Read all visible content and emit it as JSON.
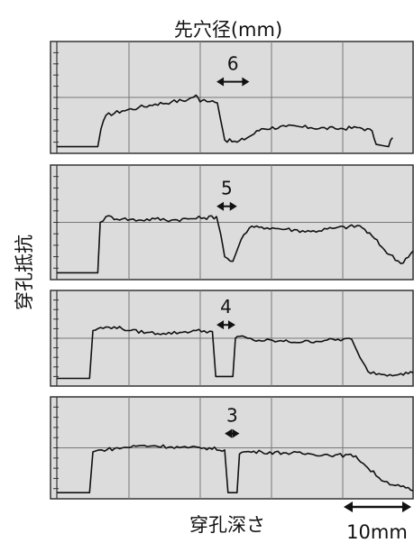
{
  "chart_data": {
    "type": "line",
    "title": "先穴径(mm)",
    "ylabel": "穿孔抵抗",
    "xlabel": "穿孔深さ",
    "scale_bar": {
      "label": "10mm",
      "length_mm": 10
    },
    "grid": true,
    "background": "#dcdcdc",
    "line_color": "#111111",
    "x_unit": "mm",
    "x_range_mm": [
      0,
      43.5
    ],
    "y_range": [
      0,
      1
    ],
    "panels": [
      {
        "hole_label": "6",
        "hole_mm": 6,
        "gap_mm": [
          19.5,
          23.5
        ],
        "x": [
          0,
          5,
          5.4,
          6,
          8,
          10,
          12,
          14,
          16,
          17,
          17.5,
          18,
          19,
          19.6,
          20,
          20.5,
          22,
          23.5,
          25,
          28,
          31,
          34,
          37,
          38.5,
          39,
          40.5,
          41
        ],
        "y": [
          0.06,
          0.06,
          0.22,
          0.34,
          0.38,
          0.41,
          0.44,
          0.46,
          0.48,
          0.52,
          0.46,
          0.48,
          0.47,
          0.45,
          0.3,
          0.12,
          0.1,
          0.15,
          0.22,
          0.24,
          0.23,
          0.22,
          0.23,
          0.2,
          0.08,
          0.06,
          0.14
        ]
      },
      {
        "hole_label": "5",
        "hole_mm": 5,
        "gap_mm": [
          19.5,
          22
        ],
        "x": [
          0,
          5,
          5.3,
          6,
          8,
          10,
          12,
          14,
          16,
          18,
          19.5,
          20,
          20.5,
          21.5,
          22.5,
          23.5,
          25,
          28,
          31,
          34,
          37,
          38.5,
          40,
          42,
          43.5
        ],
        "y": [
          0.06,
          0.06,
          0.5,
          0.55,
          0.53,
          0.52,
          0.53,
          0.52,
          0.53,
          0.54,
          0.55,
          0.4,
          0.2,
          0.16,
          0.35,
          0.45,
          0.46,
          0.44,
          0.42,
          0.45,
          0.47,
          0.38,
          0.26,
          0.14,
          0.25
        ]
      },
      {
        "hole_label": "4",
        "hole_mm": 4,
        "gap_mm": [
          19.5,
          21.8
        ],
        "x": [
          0,
          4,
          4.4,
          5,
          7,
          9,
          11,
          13,
          15,
          17,
          19,
          19.4,
          19.8,
          21.5,
          21.8,
          22.3,
          24,
          27,
          30,
          33,
          36,
          37,
          38,
          40,
          42,
          43.5
        ],
        "y": [
          0.08,
          0.08,
          0.58,
          0.6,
          0.62,
          0.58,
          0.56,
          0.55,
          0.56,
          0.58,
          0.57,
          0.1,
          0.1,
          0.1,
          0.5,
          0.52,
          0.48,
          0.47,
          0.46,
          0.48,
          0.49,
          0.3,
          0.15,
          0.12,
          0.13,
          0.14
        ]
      },
      {
        "hole_label": "3",
        "hole_mm": 3,
        "gap_mm": [
          20.5,
          22.3
        ],
        "x": [
          0,
          4,
          4.4,
          5.5,
          8,
          10,
          12,
          14,
          16,
          18,
          20.5,
          20.9,
          21.3,
          22,
          22.3,
          22.8,
          25,
          28,
          31,
          34,
          36.5,
          38,
          40,
          42,
          43.5
        ],
        "y": [
          0.06,
          0.06,
          0.46,
          0.48,
          0.5,
          0.52,
          0.52,
          0.51,
          0.5,
          0.5,
          0.48,
          0.06,
          0.06,
          0.06,
          0.44,
          0.46,
          0.46,
          0.45,
          0.44,
          0.43,
          0.42,
          0.3,
          0.17,
          0.12,
          0.08
        ]
      }
    ]
  }
}
